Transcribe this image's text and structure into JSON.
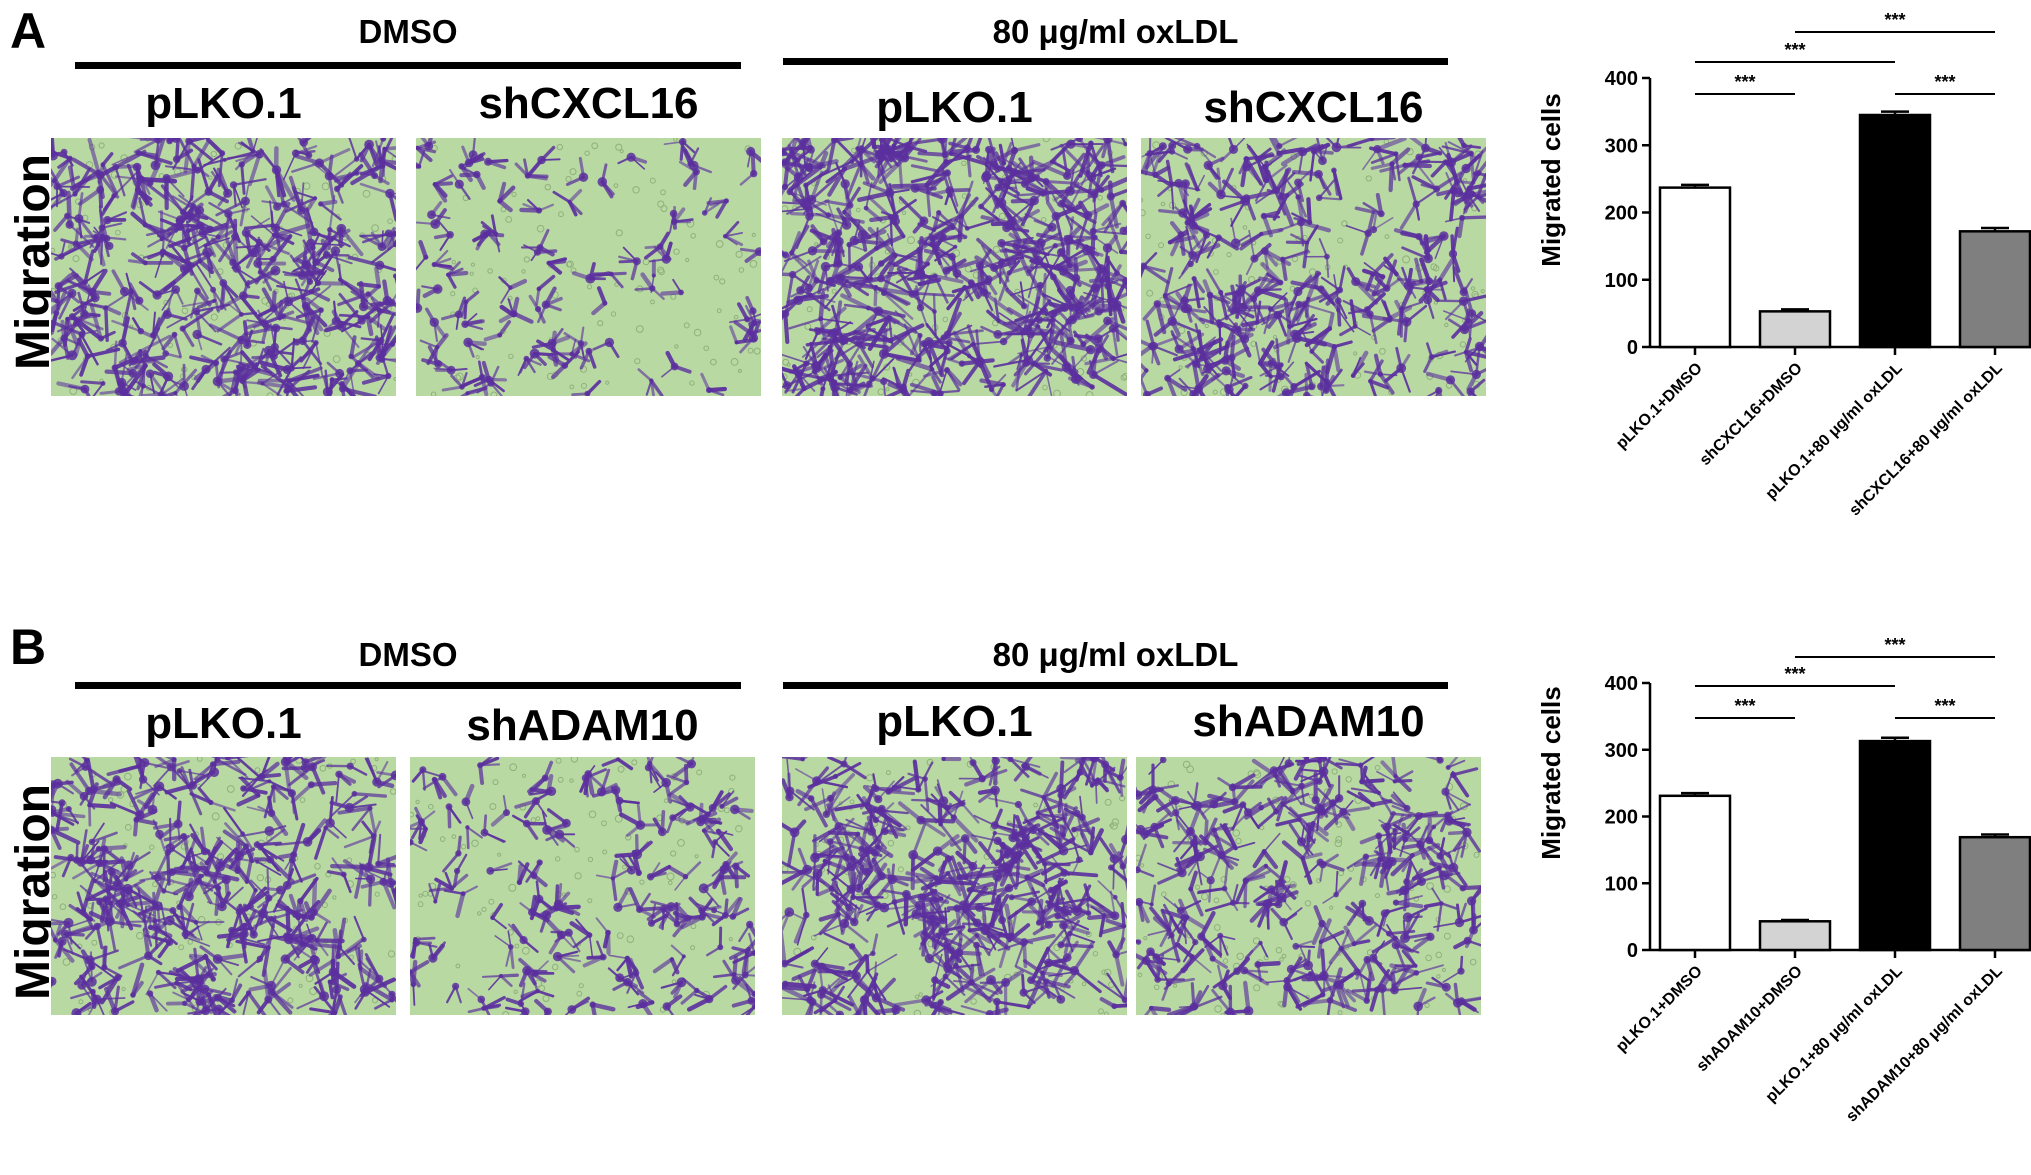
{
  "panels": [
    {
      "letter": "A",
      "groups": [
        "DMSO",
        "80 μg/ml oxLDL"
      ],
      "columns": [
        "pLKO.1",
        "shCXCL16",
        "pLKO.1",
        "shCXCL16"
      ],
      "row_label": "Migration"
    },
    {
      "letter": "B",
      "groups": [
        "DMSO",
        "80 μg/ml oxLDL"
      ],
      "columns": [
        "pLKO.1",
        "shADAM10",
        "pLKO.1",
        "shADAM10"
      ],
      "row_label": "Migration"
    }
  ],
  "chart_data": [
    {
      "type": "bar",
      "ylabel": "Migrated cells",
      "ylim": [
        0,
        400
      ],
      "yticks": [
        0,
        100,
        200,
        300,
        400
      ],
      "categories": [
        "pLKO.1+DMSO",
        "shCXCL16+DMSO",
        "pLKO.1+80 μg/ml oxLDL",
        "shCXCL16+80 μg/ml oxLDL"
      ],
      "values": [
        237,
        53,
        345,
        172
      ],
      "errors": [
        4,
        3,
        5,
        5
      ],
      "colors": [
        "#ffffff",
        "#d3d3d3",
        "#000000",
        "#7f7f7f"
      ],
      "significance": [
        {
          "from": 0,
          "to": 1,
          "label": "***"
        },
        {
          "from": 0,
          "to": 2,
          "label": "***"
        },
        {
          "from": 1,
          "to": 3,
          "label": "***"
        },
        {
          "from": 2,
          "to": 3,
          "label": "***"
        }
      ]
    },
    {
      "type": "bar",
      "ylabel": "Migrated cells",
      "ylim": [
        0,
        400
      ],
      "yticks": [
        0,
        100,
        200,
        300,
        400
      ],
      "categories": [
        "pLKO.1+DMSO",
        "shADAM10+DMSO",
        "pLKO.1+80 μg/ml oxLDL",
        "shADAM10+80 μg/ml oxLDL"
      ],
      "values": [
        231,
        43,
        313,
        169
      ],
      "errors": [
        4,
        2,
        5,
        4
      ],
      "colors": [
        "#ffffff",
        "#d3d3d3",
        "#000000",
        "#7f7f7f"
      ],
      "significance": [
        {
          "from": 0,
          "to": 1,
          "label": "***"
        },
        {
          "from": 0,
          "to": 2,
          "label": "***"
        },
        {
          "from": 1,
          "to": 3,
          "label": "***"
        },
        {
          "from": 2,
          "to": 3,
          "label": "***"
        }
      ]
    }
  ],
  "micrographs": {
    "background": "#b9d9a3",
    "stain": "#5b2f9e",
    "densities": [
      0.8,
      0.2,
      0.95,
      0.6,
      0.7,
      0.35,
      0.75,
      0.55
    ]
  }
}
